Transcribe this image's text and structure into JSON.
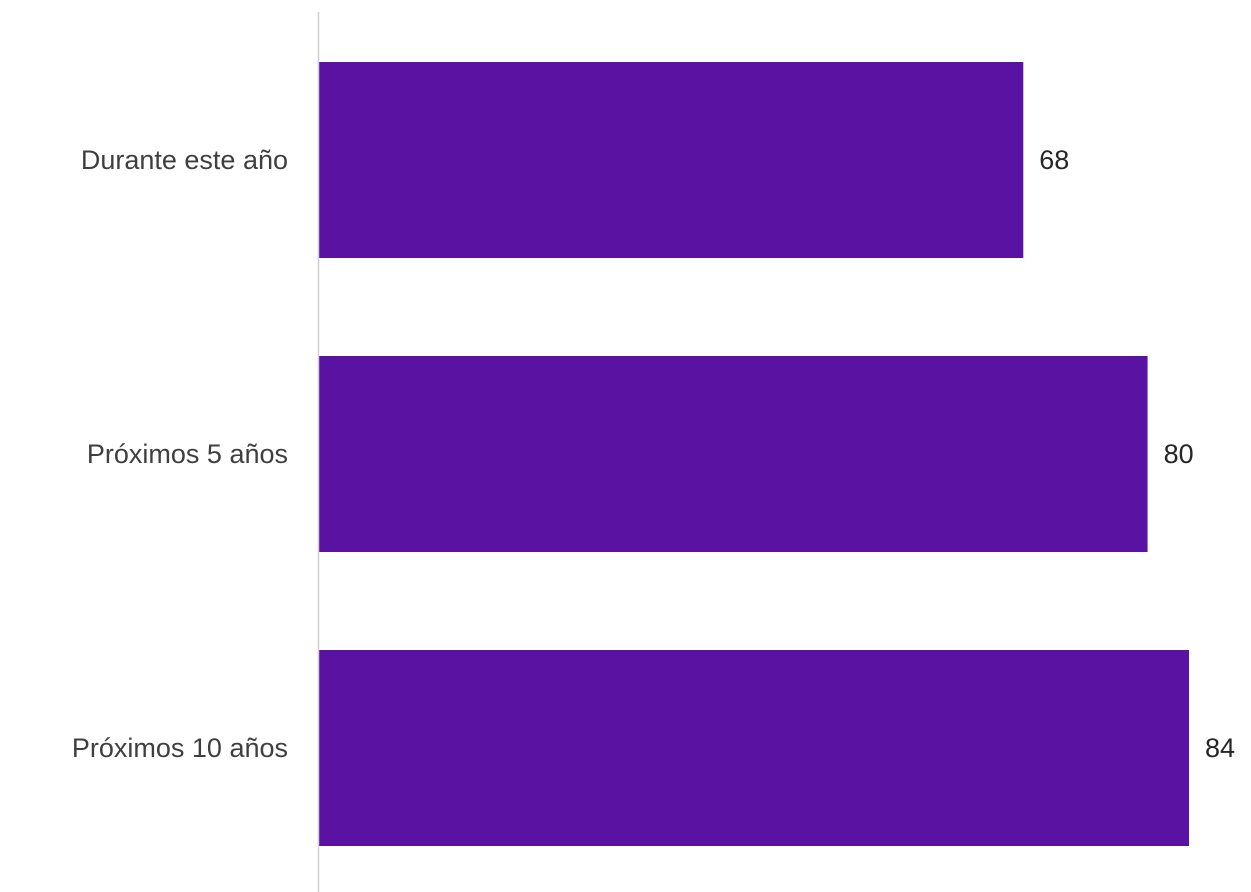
{
  "chart_data": {
    "type": "bar",
    "orientation": "horizontal",
    "categories": [
      "Durante este año",
      "Próximos 5 años",
      "Próximos 10 años"
    ],
    "values": [
      68,
      80,
      84
    ],
    "title": "",
    "xlabel": "",
    "ylabel": "",
    "xlim": [
      0,
      84
    ],
    "grid": false,
    "legend": "none",
    "data_labels": true,
    "colors": {
      "bar": "#5a12a3",
      "axis": "#d0d0d0",
      "category_text": "#3f3f3f",
      "value_text": "#262626"
    }
  }
}
